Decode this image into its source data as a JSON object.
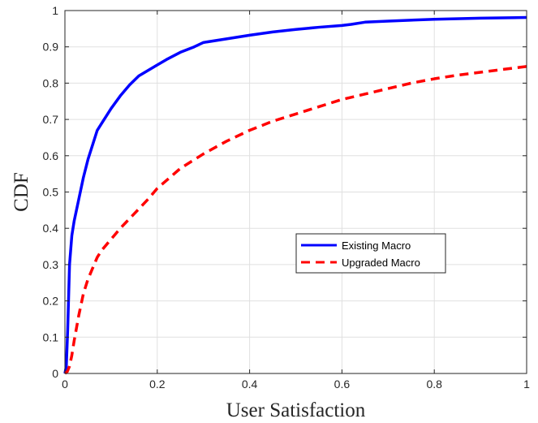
{
  "chart_data": {
    "type": "line",
    "title": "",
    "xlabel": "User Satisfaction",
    "ylabel": "CDF",
    "xlim": [
      0,
      1
    ],
    "ylim": [
      0,
      1
    ],
    "xticks": [
      "0",
      "0.2",
      "0.4",
      "0.6",
      "0.8",
      "1"
    ],
    "yticks": [
      "0",
      "0.1",
      "0.2",
      "0.3",
      "0.4",
      "0.5",
      "0.6",
      "0.7",
      "0.8",
      "0.9",
      "1"
    ],
    "grid": true,
    "legend_position": "center-right",
    "series": [
      {
        "name": "Existing Macro",
        "color": "#0000ff",
        "style": "solid",
        "x": [
          0,
          0.003,
          0.006,
          0.01,
          0.015,
          0.02,
          0.03,
          0.04,
          0.05,
          0.06,
          0.07,
          0.08,
          0.1,
          0.12,
          0.14,
          0.16,
          0.18,
          0.2,
          0.22,
          0.25,
          0.28,
          0.3,
          0.35,
          0.4,
          0.45,
          0.5,
          0.55,
          0.6,
          0.62,
          0.65,
          0.7,
          0.8,
          0.9,
          1.0
        ],
        "y": [
          0,
          0.02,
          0.12,
          0.3,
          0.38,
          0.42,
          0.48,
          0.54,
          0.59,
          0.63,
          0.67,
          0.69,
          0.73,
          0.765,
          0.795,
          0.82,
          0.835,
          0.85,
          0.865,
          0.885,
          0.9,
          0.912,
          0.922,
          0.932,
          0.941,
          0.948,
          0.954,
          0.959,
          0.962,
          0.968,
          0.971,
          0.976,
          0.979,
          0.981
        ]
      },
      {
        "name": "Upgraded Macro",
        "color": "#ff0000",
        "style": "dashed",
        "x": [
          0,
          0.005,
          0.01,
          0.015,
          0.02,
          0.03,
          0.04,
          0.05,
          0.06,
          0.07,
          0.08,
          0.1,
          0.12,
          0.15,
          0.18,
          0.2,
          0.25,
          0.3,
          0.35,
          0.4,
          0.45,
          0.5,
          0.55,
          0.6,
          0.65,
          0.7,
          0.75,
          0.8,
          0.85,
          0.9,
          0.95,
          1.0
        ],
        "y": [
          0,
          0.005,
          0.02,
          0.05,
          0.09,
          0.16,
          0.22,
          0.26,
          0.29,
          0.32,
          0.34,
          0.37,
          0.4,
          0.44,
          0.48,
          0.51,
          0.565,
          0.605,
          0.64,
          0.67,
          0.695,
          0.715,
          0.735,
          0.755,
          0.77,
          0.785,
          0.8,
          0.812,
          0.822,
          0.83,
          0.838,
          0.846
        ]
      }
    ]
  }
}
